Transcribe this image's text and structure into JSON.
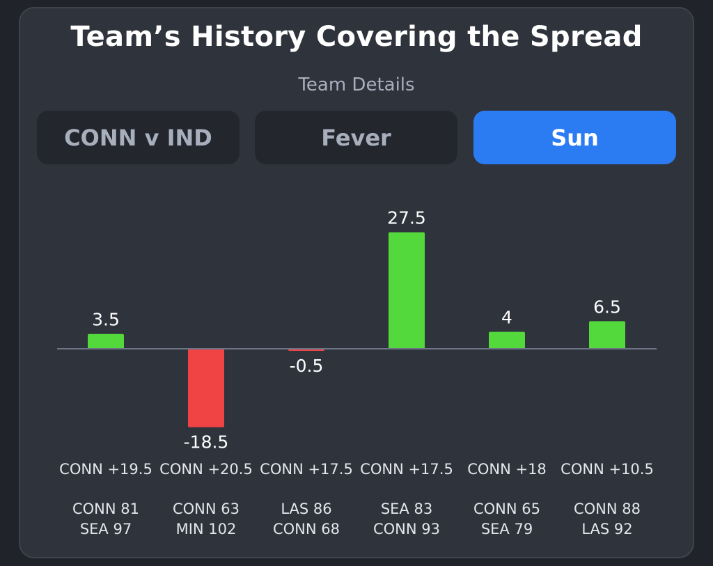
{
  "header": {
    "title": "Team’s History Covering the Spread",
    "subtitle": "Team Details"
  },
  "tabs": [
    {
      "label": "CONN v IND",
      "active": false
    },
    {
      "label": "Fever",
      "active": false
    },
    {
      "label": "Sun",
      "active": true
    }
  ],
  "colors": {
    "positive": "#53d93b",
    "negative": "#f04444",
    "accent": "#2b7cf2",
    "axis": "#6c7486"
  },
  "chart_data": {
    "type": "bar",
    "title": "Team’s History Covering the Spread",
    "categories": [
      "CONN +19.5",
      "CONN +20.5",
      "CONN +17.5",
      "CONN +17.5",
      "CONN +18",
      "CONN +10.5"
    ],
    "values": [
      3.5,
      -18.5,
      -0.5,
      27.5,
      4,
      6.5
    ],
    "value_labels": [
      "3.5",
      "-18.5",
      "-0.5",
      "27.5",
      "4",
      "6.5"
    ],
    "scores": [
      [
        "CONN 81",
        "SEA 97"
      ],
      [
        "CONN 63",
        "MIN 102"
      ],
      [
        "LAS 86",
        "CONN 68"
      ],
      [
        "SEA 83",
        "CONN 93"
      ],
      [
        "CONN 65",
        "SEA 79"
      ],
      [
        "CONN 88",
        "LAS 92"
      ]
    ],
    "ylim": [
      -18.5,
      27.5
    ],
    "baseline": 0
  }
}
